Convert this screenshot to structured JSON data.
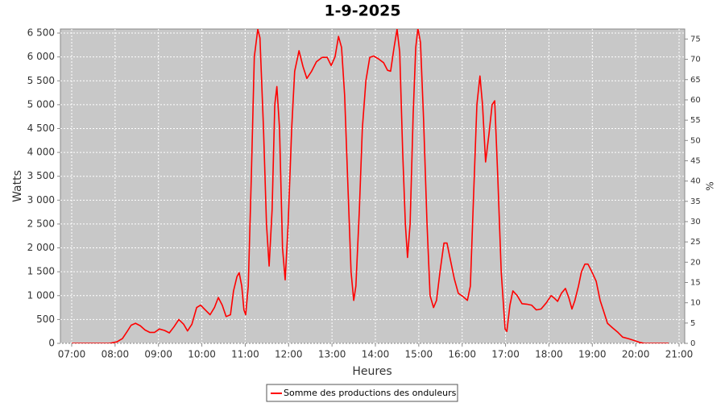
{
  "chart_data": {
    "type": "line",
    "title": "1-9-2025",
    "x_label": "Heures",
    "y_label": "Watts",
    "y2_label": "%",
    "xlim": [
      6.74,
      21.13
    ],
    "xticks": [
      {
        "value": 7,
        "label": "07:00"
      },
      {
        "value": 8,
        "label": "08:00"
      },
      {
        "value": 9,
        "label": "09:00"
      },
      {
        "value": 10,
        "label": "10:00"
      },
      {
        "value": 11,
        "label": "11:00"
      },
      {
        "value": 12,
        "label": "12:00"
      },
      {
        "value": 13,
        "label": "13:00"
      },
      {
        "value": 14,
        "label": "14:00"
      },
      {
        "value": 15,
        "label": "15:00"
      },
      {
        "value": 16,
        "label": "16:00"
      },
      {
        "value": 17,
        "label": "17:00"
      },
      {
        "value": 18,
        "label": "18:00"
      },
      {
        "value": 19,
        "label": "19:00"
      },
      {
        "value": 20,
        "label": "20:00"
      },
      {
        "value": 21,
        "label": "21:00"
      }
    ],
    "ylim": [
      0,
      6585
    ],
    "yticks": [
      0,
      500,
      {
        "value": 1000,
        "label": "1 000"
      },
      {
        "value": 1500,
        "label": "1 500"
      },
      {
        "value": 2000,
        "label": "2 000"
      },
      {
        "value": 2500,
        "label": "2 500"
      },
      {
        "value": 3000,
        "label": "3 000"
      },
      {
        "value": 3500,
        "label": "3 500"
      },
      {
        "value": 4000,
        "label": "4 000"
      },
      {
        "value": 4500,
        "label": "4 500"
      },
      {
        "value": 5000,
        "label": "5 000"
      },
      {
        "value": 5500,
        "label": "5 500"
      },
      {
        "value": 6000,
        "label": "6 000"
      },
      {
        "value": 6500,
        "label": "6 500"
      }
    ],
    "y2lim": [
      0,
      77.47
    ],
    "y2ticks": [
      0,
      5,
      10,
      15,
      20,
      25,
      30,
      35,
      40,
      45,
      50,
      55,
      60,
      65,
      70,
      75
    ],
    "grid": true,
    "legend": "bottom",
    "x": [
      7.0,
      7.87,
      8.04,
      8.17,
      8.28,
      8.37,
      8.47,
      8.58,
      8.69,
      8.8,
      8.91,
      9.02,
      9.14,
      9.25,
      9.36,
      9.47,
      9.58,
      9.67,
      9.77,
      9.88,
      9.97,
      10.1,
      10.19,
      10.29,
      10.38,
      10.47,
      10.56,
      10.66,
      10.73,
      10.81,
      10.86,
      10.92,
      10.97,
      11.01,
      11.07,
      11.14,
      11.21,
      11.29,
      11.34,
      11.42,
      11.49,
      11.55,
      11.62,
      11.68,
      11.73,
      11.79,
      11.86,
      11.92,
      11.99,
      12.07,
      12.14,
      12.24,
      12.33,
      12.42,
      12.53,
      12.64,
      12.77,
      12.89,
      12.98,
      13.07,
      13.15,
      13.22,
      13.29,
      13.37,
      13.44,
      13.5,
      13.55,
      13.63,
      13.7,
      13.78,
      13.87,
      13.96,
      14.07,
      14.19,
      14.28,
      14.35,
      14.43,
      14.5,
      14.56,
      14.63,
      14.69,
      14.74,
      14.8,
      14.87,
      14.93,
      14.98,
      15.04,
      15.11,
      15.19,
      15.26,
      15.34,
      15.41,
      15.49,
      15.58,
      15.65,
      15.74,
      15.82,
      15.91,
      16.02,
      16.12,
      16.19,
      16.26,
      16.34,
      16.41,
      16.47,
      16.54,
      16.62,
      16.69,
      16.75,
      16.82,
      16.9,
      16.99,
      17.03,
      17.1,
      17.17,
      17.27,
      17.38,
      17.49,
      17.6,
      17.71,
      17.82,
      17.94,
      18.05,
      18.12,
      18.2,
      18.29,
      18.38,
      18.46,
      18.53,
      18.6,
      18.68,
      18.75,
      18.83,
      18.9,
      18.99,
      19.09,
      19.18,
      19.27,
      19.35,
      19.46,
      19.59,
      19.7,
      19.83,
      19.96,
      20.09,
      20.2,
      20.76
    ],
    "series": [
      {
        "name": "Somme des productions des onduleurs",
        "color": "#ff0000",
        "values": [
          0,
          0,
          30,
          100,
          250,
          380,
          420,
          370,
          280,
          230,
          230,
          300,
          270,
          220,
          350,
          500,
          400,
          260,
          400,
          750,
          800,
          680,
          600,
          750,
          960,
          800,
          560,
          600,
          1100,
          1400,
          1480,
          1200,
          700,
          600,
          1200,
          3500,
          6000,
          6580,
          6400,
          4500,
          2500,
          1620,
          2800,
          5000,
          5380,
          4500,
          2000,
          1330,
          2500,
          4500,
          5700,
          6130,
          5800,
          5550,
          5700,
          5900,
          5990,
          5990,
          5820,
          6000,
          6430,
          6200,
          5200,
          3200,
          1500,
          900,
          1200,
          2800,
          4500,
          5500,
          5990,
          6020,
          5960,
          5880,
          5720,
          5700,
          6200,
          6580,
          6100,
          4000,
          2500,
          1800,
          2500,
          4800,
          6200,
          6600,
          6300,
          4700,
          2500,
          1000,
          750,
          900,
          1500,
          2100,
          2100,
          1700,
          1350,
          1050,
          980,
          900,
          1200,
          3000,
          5000,
          5600,
          5000,
          3800,
          4400,
          5000,
          5080,
          3500,
          1500,
          300,
          250,
          800,
          1100,
          1000,
          830,
          820,
          800,
          700,
          720,
          850,
          1000,
          950,
          880,
          1050,
          1150,
          950,
          720,
          900,
          1200,
          1500,
          1660,
          1660,
          1500,
          1300,
          900,
          650,
          420,
          330,
          230,
          130,
          100,
          60,
          20,
          0,
          0
        ]
      }
    ]
  }
}
